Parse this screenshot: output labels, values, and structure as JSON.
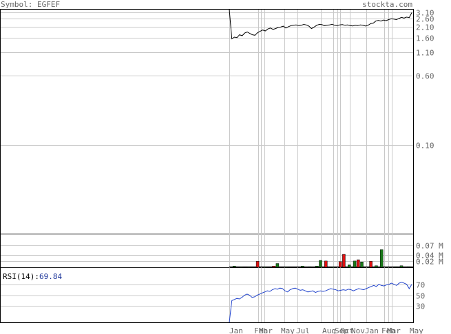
{
  "header": {
    "symbol_label": "Symbol: EGFEF",
    "brand": "stockta.com"
  },
  "colors": {
    "text": "#666666",
    "grid": "#c8c8c8",
    "frame": "#000000",
    "price_line": "#000000",
    "volume_up": "#1a7a1a",
    "volume_down": "#dd1111",
    "rsi_line": "#2244cc",
    "rsi_value": "#1a3399"
  },
  "rsi": {
    "label": "RSI(14):",
    "value": "69.84"
  },
  "chart_data": [
    {
      "type": "line",
      "title": "",
      "scale": "log",
      "price_ticks": [
        "3.10",
        "2.60",
        "2.10",
        "1.60",
        "1.10",
        "0.60",
        "0.10"
      ],
      "price_tick_values": [
        3.1,
        2.6,
        2.1,
        1.6,
        1.1,
        0.6,
        0.1
      ],
      "ylim": [
        0.01,
        3.3
      ],
      "x_labels": [
        "Jan",
        "Feb",
        "Mar",
        "May",
        "Jul",
        "Aug",
        "Sep",
        "Oct",
        "Nov",
        "Jan",
        "Feb",
        "Mar",
        "May"
      ],
      "series": [
        {
          "values": [
            3.3,
            1.55,
            1.62,
            1.6,
            1.72,
            1.68,
            1.8,
            1.85,
            1.78,
            1.72,
            1.7,
            1.82,
            1.88,
            1.95,
            1.9,
            2.0,
            2.05,
            1.98,
            2.02,
            2.08,
            2.1,
            2.15,
            2.05,
            2.12,
            2.18,
            2.2,
            2.22,
            2.18,
            2.2,
            2.25,
            2.22,
            2.15,
            2.02,
            2.1,
            2.2,
            2.25,
            2.24,
            2.18,
            2.2,
            2.22,
            2.26,
            2.2,
            2.18,
            2.22,
            2.24,
            2.2,
            2.22,
            2.18,
            2.16,
            2.2,
            2.18,
            2.22,
            2.2,
            2.16,
            2.2,
            2.3,
            2.32,
            2.45,
            2.5,
            2.45,
            2.52,
            2.48,
            2.55,
            2.6,
            2.58,
            2.55,
            2.62,
            2.7,
            2.65,
            2.72,
            2.68,
            3.05
          ]
        }
      ]
    },
    {
      "type": "bar",
      "title": "",
      "volume_ticks": [
        "0.07 M",
        "0.04 M",
        "0.02 M"
      ],
      "volume_tick_values": [
        0.07,
        0.04,
        0.02
      ],
      "ylim": [
        0,
        0.1
      ],
      "unit": "M",
      "bars": [
        {
          "x": 0.02,
          "value": 0.004,
          "dir": "up"
        },
        {
          "x": 0.06,
          "value": 0.001,
          "dir": "up"
        },
        {
          "x": 0.1,
          "value": 0.001,
          "dir": "up"
        },
        {
          "x": 0.15,
          "value": 0.019,
          "dir": "down"
        },
        {
          "x": 0.19,
          "value": 0.001,
          "dir": "up"
        },
        {
          "x": 0.24,
          "value": 0.004,
          "dir": "down"
        },
        {
          "x": 0.26,
          "value": 0.012,
          "dir": "up"
        },
        {
          "x": 0.31,
          "value": 0.001,
          "dir": "up"
        },
        {
          "x": 0.4,
          "value": 0.004,
          "dir": "up"
        },
        {
          "x": 0.44,
          "value": 0.002,
          "dir": "up"
        },
        {
          "x": 0.48,
          "value": 0.004,
          "dir": "up"
        },
        {
          "x": 0.5,
          "value": 0.022,
          "dir": "up"
        },
        {
          "x": 0.53,
          "value": 0.02,
          "dir": "down"
        },
        {
          "x": 0.57,
          "value": 0.001,
          "dir": "up"
        },
        {
          "x": 0.61,
          "value": 0.018,
          "dir": "down"
        },
        {
          "x": 0.63,
          "value": 0.041,
          "dir": "down"
        },
        {
          "x": 0.66,
          "value": 0.008,
          "dir": "up"
        },
        {
          "x": 0.69,
          "value": 0.02,
          "dir": "up"
        },
        {
          "x": 0.71,
          "value": 0.024,
          "dir": "down"
        },
        {
          "x": 0.73,
          "value": 0.017,
          "dir": "up"
        },
        {
          "x": 0.78,
          "value": 0.019,
          "dir": "down"
        },
        {
          "x": 0.81,
          "value": 0.005,
          "dir": "up"
        },
        {
          "x": 0.84,
          "value": 0.056,
          "dir": "up"
        },
        {
          "x": 0.87,
          "value": 0.001,
          "dir": "up"
        },
        {
          "x": 0.92,
          "value": 0.002,
          "dir": "up"
        },
        {
          "x": 0.95,
          "value": 0.005,
          "dir": "up"
        },
        {
          "x": 0.99,
          "value": 0.002,
          "dir": "up"
        }
      ]
    },
    {
      "type": "line",
      "title": "",
      "rsi_ticks": [
        "70",
        "50",
        "30"
      ],
      "rsi_tick_values": [
        70,
        50,
        30
      ],
      "ylim": [
        0,
        100
      ],
      "series": [
        {
          "values": [
            0,
            40,
            42,
            44,
            43,
            46,
            50,
            52,
            50,
            46,
            47,
            50,
            52,
            54,
            56,
            58,
            57,
            60,
            62,
            61,
            63,
            62,
            58,
            56,
            60,
            62,
            63,
            61,
            59,
            60,
            58,
            56,
            57,
            58,
            55,
            57,
            58,
            57,
            58,
            60,
            62,
            61,
            60,
            58,
            59,
            60,
            59,
            61,
            60,
            58,
            60,
            62,
            61,
            60,
            62,
            64,
            66,
            68,
            66,
            70,
            68,
            67,
            69,
            70,
            72,
            70,
            68,
            72,
            74,
            72,
            70,
            62,
            70
          ]
        }
      ]
    }
  ]
}
